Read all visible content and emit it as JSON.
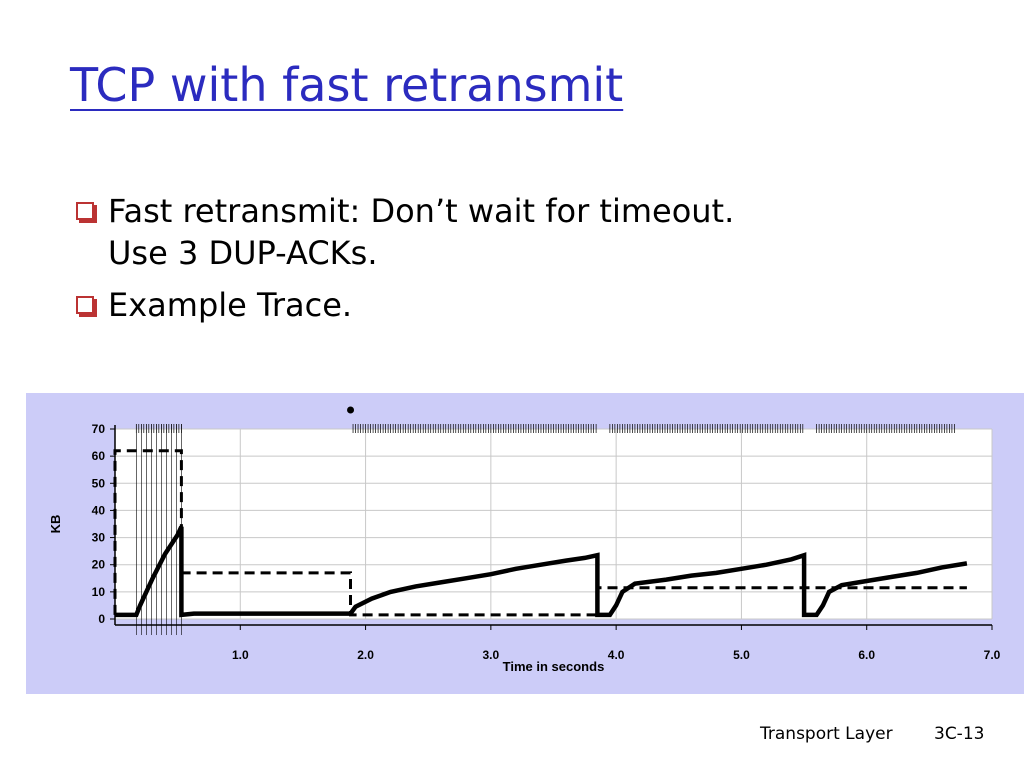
{
  "slide": {
    "title": "TCP with fast retransmit",
    "bullets": [
      {
        "lines": [
          "Fast retransmit: Don’t wait for timeout.",
          "Use 3 DUP-ACKs."
        ]
      },
      {
        "lines": [
          "Example Trace."
        ]
      }
    ],
    "footer_label": "Transport Layer",
    "page_number": "3C-13"
  },
  "colors": {
    "title": "#2b2bbf",
    "bullet": "#b33333",
    "chart_background": "#ccccf8",
    "grid": "#c8c8c8",
    "ink": "#000000"
  },
  "chart_data": {
    "type": "line",
    "title": "",
    "xlabel": "Time in seconds",
    "ylabel": "KB",
    "xlim": [
      0,
      7
    ],
    "ylim": [
      0,
      70
    ],
    "x_ticks": [
      "1.0",
      "2.0",
      "3.0",
      "4.0",
      "5.0",
      "6.0",
      "7.0"
    ],
    "y_ticks": [
      "0",
      "10",
      "20",
      "30",
      "40",
      "50",
      "60",
      "70"
    ],
    "grid": true,
    "series": [
      {
        "style": "solid",
        "x": [
          0.0,
          0.17,
          0.2,
          0.3,
          0.4,
          0.5,
          0.53,
          0.53,
          0.63,
          1.88,
          1.92,
          2.05,
          2.2,
          2.4,
          2.6,
          2.8,
          3.0,
          3.2,
          3.4,
          3.6,
          3.75,
          3.85,
          3.85,
          3.95,
          4.0,
          4.05,
          4.15,
          4.4,
          4.6,
          4.8,
          5.0,
          5.2,
          5.4,
          5.5,
          5.5,
          5.6,
          5.65,
          5.7,
          5.8,
          6.0,
          6.2,
          6.4,
          6.6,
          6.8
        ],
        "y": [
          1.5,
          1.5,
          5,
          15,
          24,
          31,
          34,
          1.5,
          2,
          2,
          4.5,
          7.5,
          10,
          12,
          13.5,
          15,
          16.5,
          18.5,
          20,
          21.5,
          22.5,
          23.5,
          1.5,
          1.5,
          5,
          10,
          13,
          14.5,
          16,
          17,
          18.5,
          20,
          22,
          23.5,
          1.5,
          1.5,
          5,
          10,
          12.5,
          14,
          15.5,
          17,
          19,
          20.5
        ]
      },
      {
        "style": "dashed",
        "x": [
          0.0,
          0.0,
          0.53,
          0.53,
          1.88,
          1.88,
          3.85,
          3.85,
          5.5,
          5.5,
          6.8
        ],
        "y": [
          1.5,
          62,
          62,
          17,
          17,
          1.5,
          1.5,
          11.5,
          11.5,
          11.5,
          11.5
        ]
      }
    ],
    "rug_marks": [
      {
        "label": "transmissions",
        "segments": [
          [
            0.17,
            0.53
          ],
          [
            1.9,
            3.85
          ],
          [
            3.95,
            5.5
          ],
          [
            5.6,
            6.7
          ]
        ]
      }
    ],
    "marker_dot": {
      "x": 1.88,
      "y": 77
    }
  }
}
